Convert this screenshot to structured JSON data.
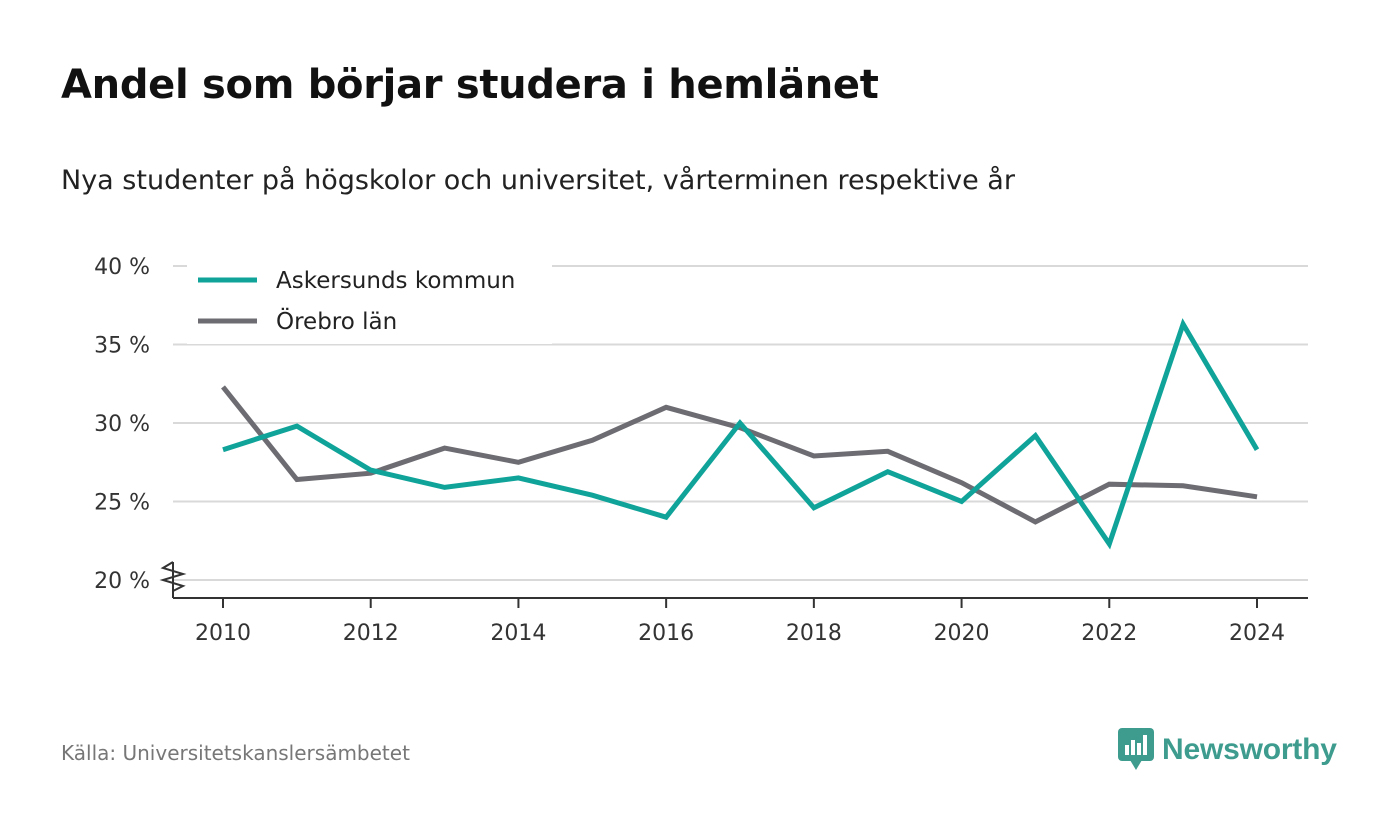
{
  "title": "Andel som börjar studera i hemlänet",
  "subtitle": "Nya studenter på högskolor och universitet, vårterminen respektive år",
  "source": "Källa: Universitetskanslersämbetet",
  "brand": {
    "name": "Newsworthy",
    "icon": "newsworthy-logo-icon",
    "color": "#3e9c8f"
  },
  "chart_data": {
    "type": "line",
    "x": [
      2010,
      2011,
      2012,
      2013,
      2014,
      2015,
      2016,
      2017,
      2018,
      2019,
      2020,
      2021,
      2022,
      2023,
      2024
    ],
    "series": [
      {
        "name": "Askersunds kommun",
        "color": "#0fa39a",
        "values": [
          28.3,
          29.8,
          27.0,
          25.9,
          26.5,
          25.4,
          24.0,
          30.0,
          24.6,
          26.9,
          25.0,
          29.2,
          22.3,
          36.3,
          28.3
        ]
      },
      {
        "name": "Örebro län",
        "color": "#6c6c72",
        "values": [
          32.3,
          26.4,
          26.8,
          28.4,
          27.5,
          28.9,
          31.0,
          29.7,
          27.9,
          28.2,
          26.2,
          23.7,
          26.1,
          26.0,
          25.3
        ]
      }
    ],
    "ylim": [
      20,
      40
    ],
    "yticks": [
      20,
      25,
      30,
      35,
      40
    ],
    "ytick_labels": [
      "20 %",
      "25 %",
      "30 %",
      "35 %",
      "40 %"
    ],
    "xticks": [
      2010,
      2012,
      2014,
      2016,
      2018,
      2020,
      2022,
      2024
    ],
    "xtick_labels": [
      "2010",
      "2012",
      "2014",
      "2016",
      "2018",
      "2020",
      "2022",
      "2024"
    ],
    "grid": "horizontal",
    "legend_position": "top-left",
    "axis_break": "y"
  }
}
